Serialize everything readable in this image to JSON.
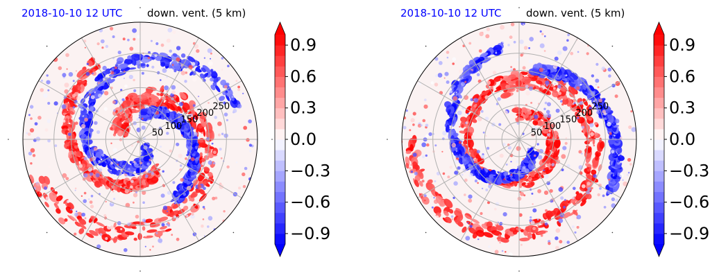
{
  "colors": {
    "date_text": "#0000ff",
    "positive": "#ff0000",
    "negative": "#0000ff",
    "neutral": "#ffffff",
    "grid": "#b0b0b0"
  },
  "colorbar": {
    "ticks": [
      "0.9",
      "0.6",
      "0.3",
      "0.0",
      "−0.3",
      "−0.6",
      "−0.9"
    ],
    "extend": "both",
    "levels": [
      -1.0,
      -0.9,
      -0.8,
      -0.7,
      -0.6,
      -0.5,
      -0.4,
      -0.3,
      -0.2,
      -0.1,
      0.0,
      0.1,
      0.2,
      0.3,
      0.4,
      0.5,
      0.6,
      0.7,
      0.8,
      0.9,
      1.0
    ]
  },
  "chart_data": [
    {
      "type": "heatmap",
      "projection": "polar",
      "title_date": "2018-10-10 12 UTC",
      "title_var": "down. vent. (5 km)",
      "radial_labels": [
        "50",
        "100",
        "150",
        "200",
        "250"
      ],
      "radial_values": [
        50,
        100,
        150,
        200,
        250
      ],
      "color_range": [
        -1.0,
        1.0
      ],
      "features": [
        {
          "kind": "spiral-band",
          "sign": 1,
          "r0": 0.95,
          "r1": 0.15,
          "a0": 200,
          "turns": 0.9,
          "w": 0.16
        },
        {
          "kind": "spiral-band",
          "sign": 1,
          "r0": 0.75,
          "r1": 0.3,
          "a0": 120,
          "turns": 0.5,
          "w": 0.09
        },
        {
          "kind": "spiral-band",
          "sign": -1,
          "r0": 0.85,
          "r1": 0.12,
          "a0": 20,
          "turns": 0.8,
          "w": 0.12
        },
        {
          "kind": "spiral-band",
          "sign": -1,
          "r0": 0.6,
          "r1": 0.2,
          "a0": 300,
          "turns": 0.4,
          "w": 0.08
        }
      ]
    },
    {
      "type": "heatmap",
      "projection": "polar",
      "title_date": "2018-10-10 12 UTC",
      "title_var": "down. vent. (5 km)",
      "radial_labels": [
        "50",
        "100",
        "150",
        "200",
        "250"
      ],
      "radial_values": [
        50,
        100,
        150,
        200,
        250
      ],
      "color_range": [
        -1.0,
        1.0
      ],
      "features": [
        {
          "kind": "spiral-band",
          "sign": 1,
          "r0": 0.95,
          "r1": 0.45,
          "a0": 180,
          "turns": 0.8,
          "w": 0.14
        },
        {
          "kind": "spiral-band",
          "sign": 1,
          "r0": 0.55,
          "r1": 0.2,
          "a0": 60,
          "turns": 1.1,
          "w": 0.1
        },
        {
          "kind": "spiral-band",
          "sign": -1,
          "r0": 0.8,
          "r1": 0.15,
          "a0": 100,
          "turns": 0.6,
          "w": 0.08
        },
        {
          "kind": "spiral-band",
          "sign": -1,
          "r0": 0.9,
          "r1": 0.6,
          "a0": 330,
          "turns": 0.3,
          "w": 0.08
        }
      ]
    }
  ]
}
